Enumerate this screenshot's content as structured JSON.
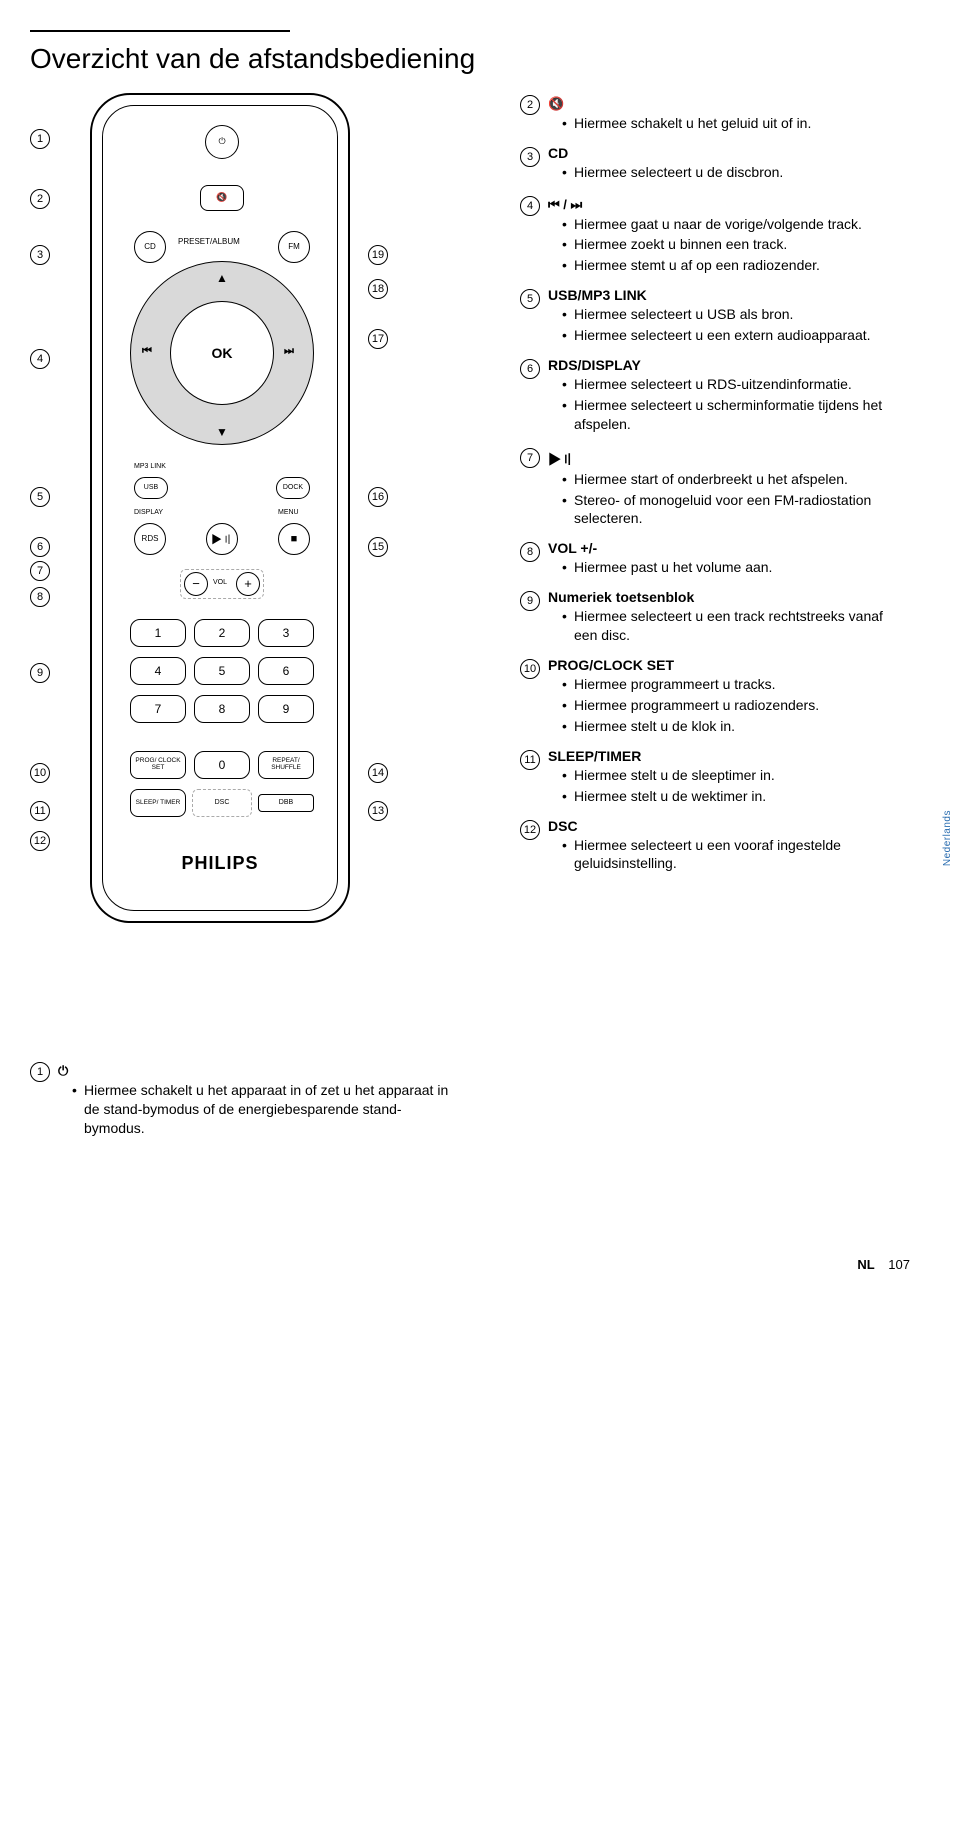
{
  "title": "Overzicht van de afstandsbediening",
  "brand": "PHILIPS",
  "side_tab": "Nederlands",
  "footer": {
    "lang": "NL",
    "page": "107"
  },
  "remote": {
    "cd": "CD",
    "fm": "FM",
    "preset": "PRESET/ALBUM",
    "ok": "OK",
    "mp3link": "MP3 LINK",
    "usb": "USB",
    "dock": "DOCK",
    "display": "DISPLAY",
    "menu": "MENU",
    "rds": "RDS",
    "vol": "VOL",
    "keypad": [
      "1",
      "2",
      "3",
      "4",
      "5",
      "6",
      "7",
      "8",
      "9",
      "0"
    ],
    "prog": "PROG/\nCLOCK SET",
    "repeat": "REPEAT/\nSHUFFLE",
    "sleep": "SLEEP/\nTIMER",
    "dsc": "DSC",
    "dbb": "DBB",
    "power_glyph": "⏻",
    "mute_glyph": "🔇",
    "prev_glyph": "⏮",
    "next_glyph": "⏭",
    "up_glyph": "▲",
    "down_glyph": "▼",
    "play_glyph": "▶〢",
    "stop_glyph": "■",
    "minus": "−",
    "plus": "+"
  },
  "left_callouts": {
    "1": 90,
    "2": 150,
    "3": 206,
    "4": 310,
    "5": 448,
    "6": 498,
    "7": 522,
    "8": 548,
    "9": 624,
    "10": 724,
    "11": 762,
    "12": 792
  },
  "right_callouts": {
    "19": 206,
    "18": 240,
    "17": 290,
    "16": 448,
    "15": 498,
    "14": 724,
    "13": 762
  },
  "desc_left_lower": {
    "num": "1",
    "icon": "⏻",
    "bullets": [
      "Hiermee schakelt u het apparaat in of zet u het apparaat in de stand-bymodus of de energiebesparende stand-bymodus."
    ]
  },
  "right_items": [
    {
      "num": "2",
      "icon": "🔇",
      "bullets": [
        "Hiermee schakelt u het geluid uit of in."
      ]
    },
    {
      "num": "3",
      "heading": "CD",
      "bullets": [
        "Hiermee selecteert u de discbron."
      ]
    },
    {
      "num": "4",
      "icon": "⏮ / ⏭",
      "bullets": [
        "Hiermee gaat u naar de vorige/volgende track.",
        "Hiermee zoekt u binnen een track.",
        "Hiermee stemt u af op een radiozender."
      ]
    },
    {
      "num": "5",
      "heading": "USB/MP3 LINK",
      "bullets": [
        "Hiermee selecteert u USB als bron.",
        "Hiermee selecteert u een extern audioapparaat."
      ]
    },
    {
      "num": "6",
      "heading": "RDS/DISPLAY",
      "bullets": [
        "Hiermee selecteert u RDS-uitzendinformatie.",
        "Hiermee selecteert u scherminformatie tijdens het afspelen."
      ]
    },
    {
      "num": "7",
      "icon": "▶〢",
      "bullets": [
        "Hiermee start of onderbreekt u het afspelen.",
        "Stereo- of monogeluid voor een FM-radiostation selecteren."
      ]
    },
    {
      "num": "8",
      "heading": "VOL +/-",
      "bullets": [
        "Hiermee past u het volume aan."
      ]
    },
    {
      "num": "9",
      "heading": "Numeriek toetsenblok",
      "bullets": [
        "Hiermee selecteert u een track rechtstreeks vanaf een disc."
      ]
    },
    {
      "num": "10",
      "heading": "PROG/CLOCK SET",
      "bullets": [
        "Hiermee programmeert u tracks.",
        "Hiermee programmeert u radiozenders.",
        "Hiermee stelt u de klok in."
      ]
    },
    {
      "num": "11",
      "heading": "SLEEP/TIMER",
      "bullets": [
        "Hiermee stelt u de sleeptimer in.",
        "Hiermee stelt u de wektimer in."
      ]
    },
    {
      "num": "12",
      "heading": "DSC",
      "bullets": [
        "Hiermee selecteert u een vooraf ingestelde geluidsinstelling."
      ]
    }
  ]
}
